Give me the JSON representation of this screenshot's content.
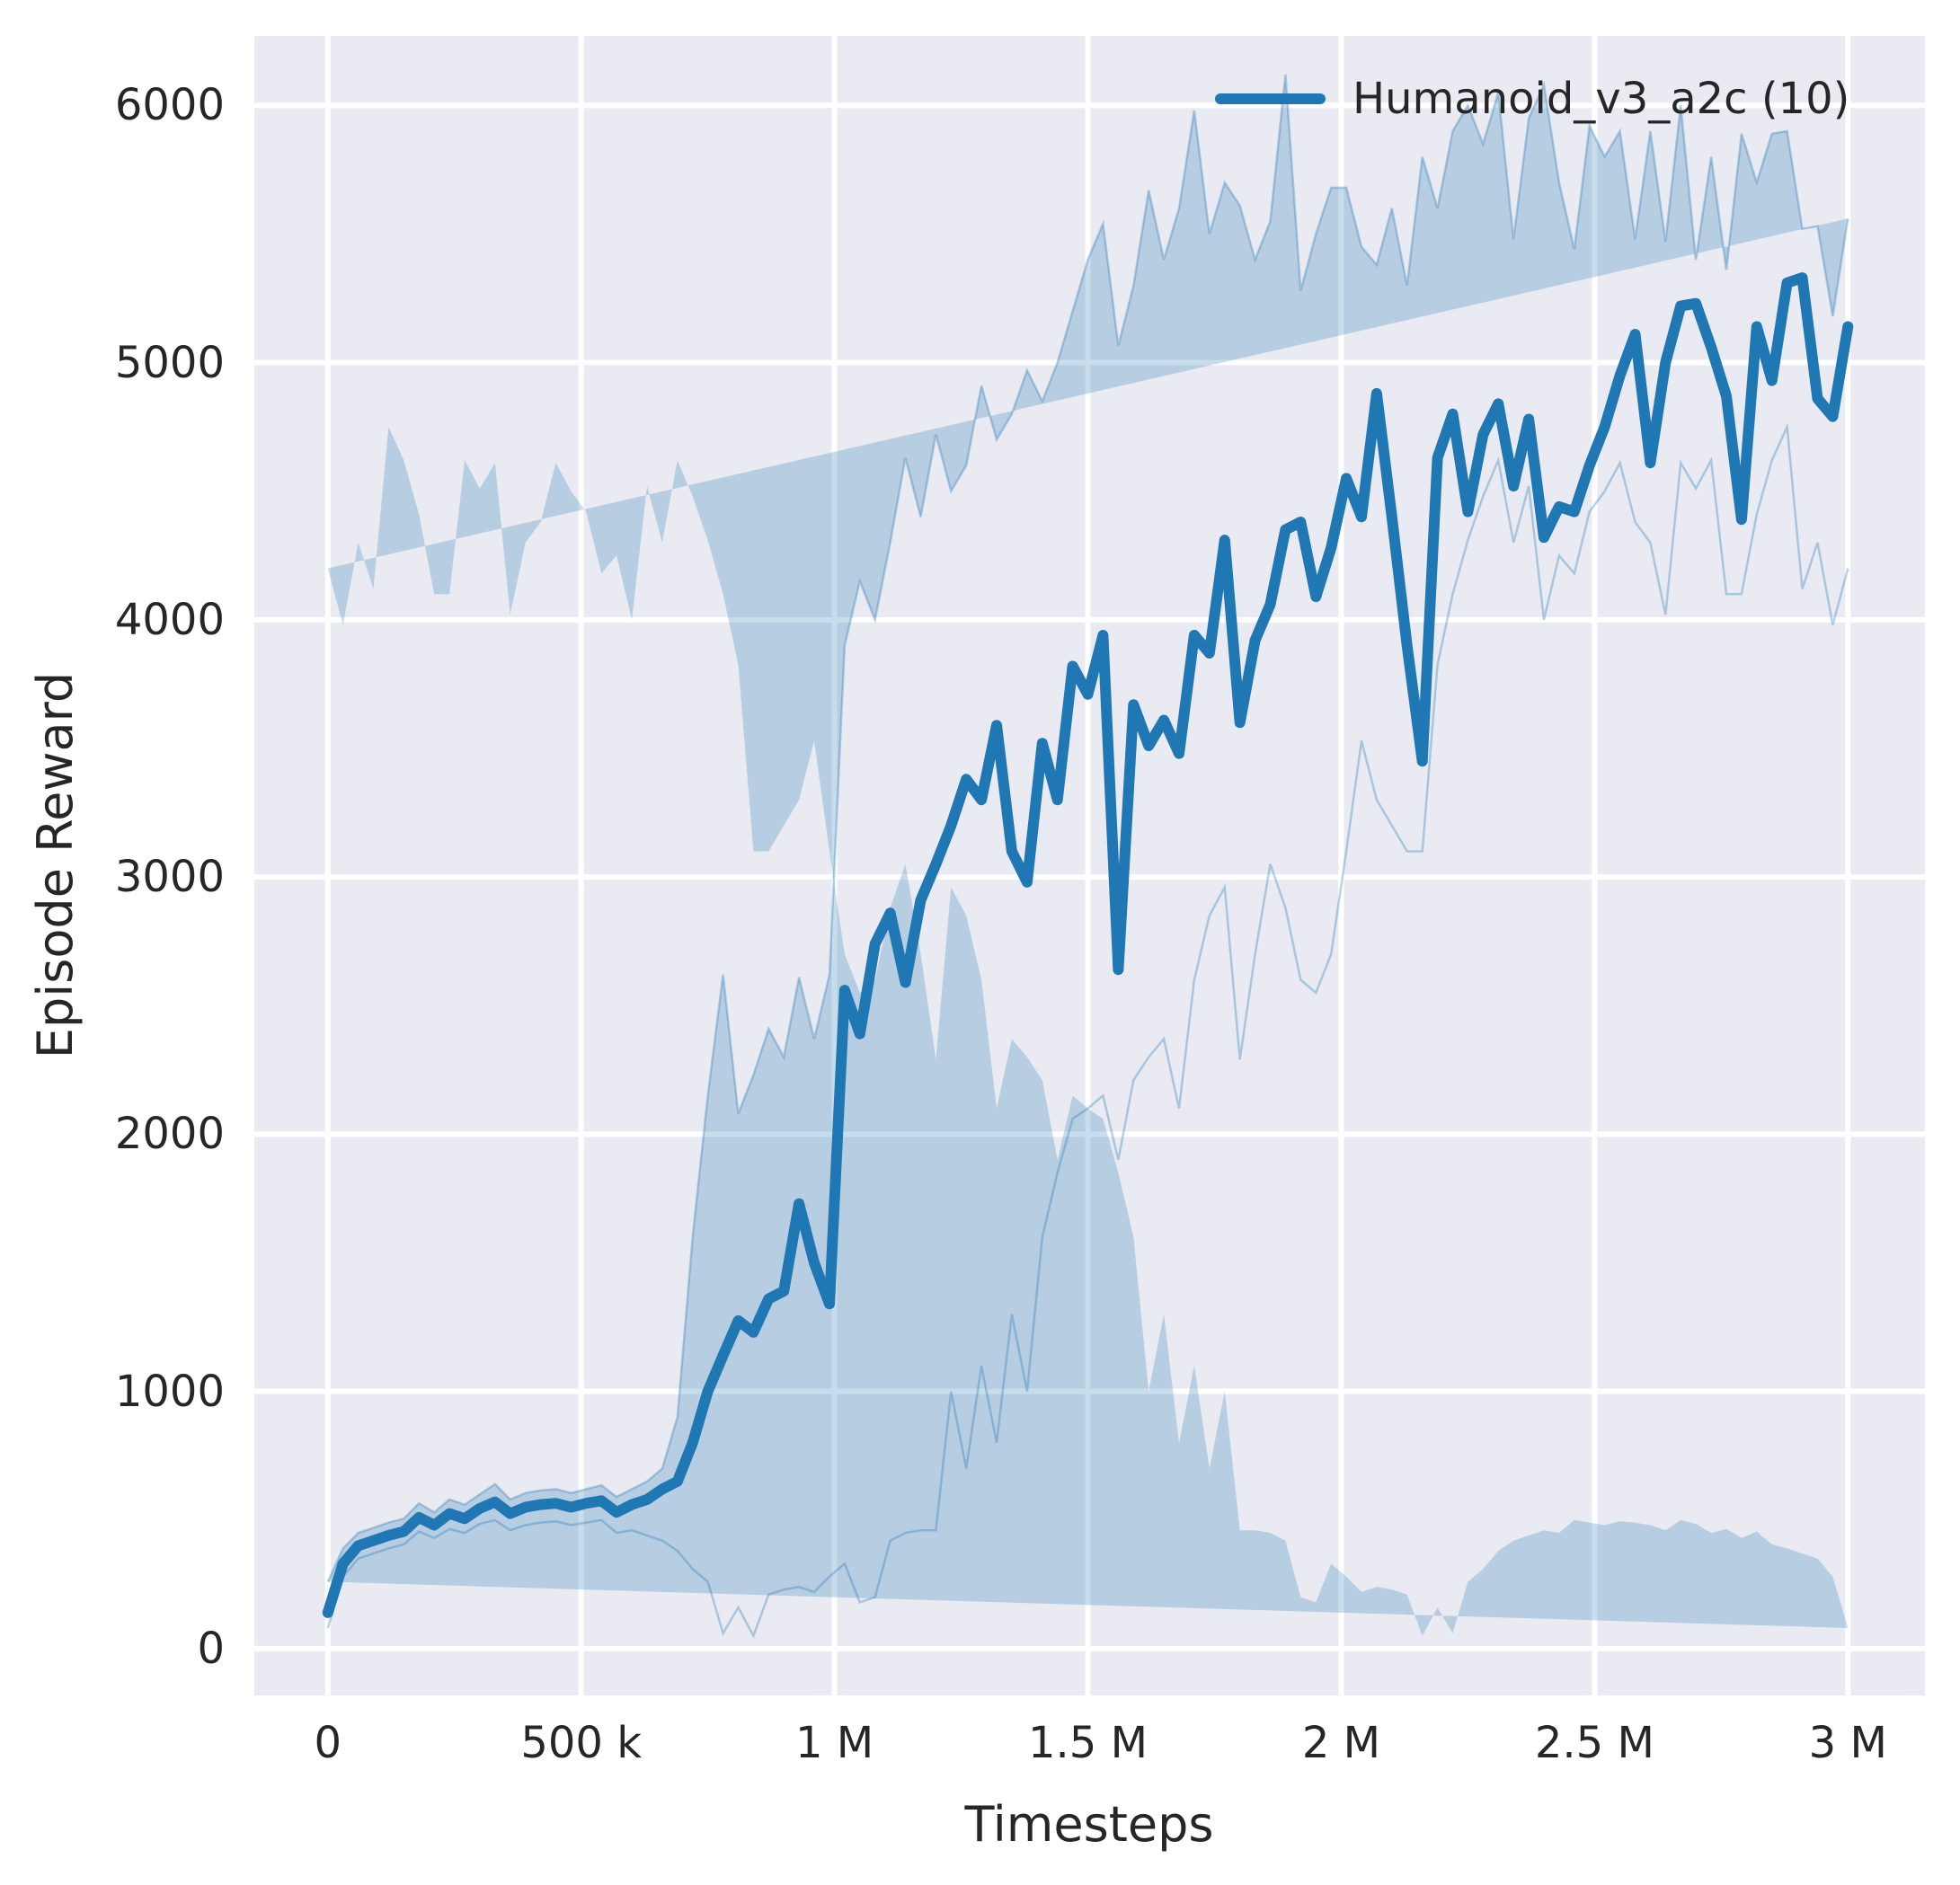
{
  "colors": {
    "figure_background": "#ffffff",
    "axes_background": "#eaeaf2",
    "grid": "#ffffff",
    "line": "#1f77b4",
    "band_fill": "rgba(31,119,180,0.25)",
    "band_edge": "rgba(31,119,180,0.32)",
    "text": "#262626"
  },
  "chart_data": {
    "type": "line",
    "title": "",
    "xlabel": "Timesteps",
    "ylabel": "Episode Reward",
    "grid": true,
    "legend": {
      "position": "upper right",
      "entries": [
        {
          "label": "Humanoid_v3_a2c (10)",
          "color": "#1f77b4"
        }
      ]
    },
    "xlim": [
      -145000,
      3152000
    ],
    "ylim": [
      -182,
      6270
    ],
    "x_ticks": [
      {
        "value": 0,
        "label": "0"
      },
      {
        "value": 500000,
        "label": "500 k"
      },
      {
        "value": 1000000,
        "label": "1 M"
      },
      {
        "value": 1500000,
        "label": "1.5 M"
      },
      {
        "value": 2000000,
        "label": "2 M"
      },
      {
        "value": 2500000,
        "label": "2.5 M"
      },
      {
        "value": 3000000,
        "label": "3 M"
      }
    ],
    "y_ticks": [
      {
        "value": 0,
        "label": "0"
      },
      {
        "value": 1000,
        "label": "1000"
      },
      {
        "value": 2000,
        "label": "2000"
      },
      {
        "value": 3000,
        "label": "3000"
      },
      {
        "value": 4000,
        "label": "4000"
      },
      {
        "value": 5000,
        "label": "5000"
      },
      {
        "value": 6000,
        "label": "6000"
      }
    ],
    "series": [
      {
        "name": "Humanoid_v3_a2c (10)",
        "color": "#1f77b4",
        "x": {
          "start": 0,
          "step": 30000,
          "count": 101,
          "unit": "timesteps"
        },
        "mean": [
          140,
          330,
          400,
          420,
          440,
          455,
          510,
          480,
          525,
          505,
          545,
          570,
          525,
          550,
          560,
          565,
          550,
          565,
          575,
          530,
          560,
          580,
          620,
          650,
          800,
          1000,
          1140,
          1275,
          1230,
          1360,
          1390,
          1730,
          1500,
          1340,
          2560,
          2390,
          2740,
          2860,
          2590,
          2910,
          3050,
          3200,
          3380,
          3300,
          3590,
          3100,
          2980,
          3520,
          3300,
          3820,
          3710,
          3940,
          2640,
          3670,
          3510,
          3610,
          3480,
          3940,
          3870,
          4310,
          3600,
          3920,
          4060,
          4350,
          4380,
          4090,
          4280,
          4550,
          4400,
          4880,
          4400,
          3900,
          3450,
          4630,
          4800,
          4420,
          4720,
          4840,
          4520,
          4780,
          4320,
          4440,
          4420,
          4600,
          4750,
          4950,
          5110,
          4610,
          5000,
          5220,
          5230,
          5060,
          4870,
          4390,
          5140,
          4930,
          5310,
          5330,
          4860,
          4790,
          5140
        ],
        "band_upper": [
          260,
          390,
          450,
          470,
          490,
          505,
          565,
          530,
          580,
          560,
          600,
          640,
          580,
          605,
          615,
          620,
          605,
          620,
          635,
          590,
          620,
          650,
          700,
          900,
          1600,
          2150,
          2620,
          2080,
          2230,
          2410,
          2300,
          2610,
          2370,
          2620,
          3900,
          4150,
          4000,
          4300,
          4630,
          4400,
          4720,
          4500,
          4600,
          4910,
          4700,
          4800,
          4970,
          4850,
          5000,
          5200,
          5400,
          5540,
          5065,
          5300,
          5670,
          5400,
          5600,
          5980,
          5500,
          5700,
          5610,
          5400,
          5550,
          6120,
          5280,
          5500,
          5680,
          5680,
          5450,
          5380,
          5600,
          5300,
          5800,
          5600,
          5900,
          6000,
          5850,
          6050,
          5480,
          5950,
          6080,
          5700,
          5440,
          5920,
          5800,
          5900,
          5480,
          5900,
          5470,
          6000,
          5400,
          5800,
          5360,
          5890,
          5700,
          5890,
          5900,
          5520,
          5530,
          5180,
          5560
        ],
        "band_lower": [
          80,
          280,
          350,
          370,
          390,
          405,
          455,
          430,
          465,
          450,
          485,
          500,
          460,
          480,
          490,
          495,
          480,
          490,
          500,
          450,
          460,
          440,
          420,
          380,
          310,
          260,
          60,
          160,
          50,
          210,
          230,
          240,
          220,
          280,
          330,
          180,
          200,
          420,
          450,
          460,
          460,
          1000,
          700,
          1100,
          800,
          1300,
          1000,
          1600,
          1850,
          2060,
          2100,
          2150,
          1900,
          2210,
          2300,
          2370,
          2100,
          2600,
          2850,
          2960,
          2290,
          2700,
          3050,
          2880,
          2600,
          2550,
          2700,
          3100,
          3530,
          3300,
          3200,
          3100,
          3100,
          3825,
          4100,
          4310,
          4480,
          4620,
          4300,
          4520,
          4000,
          4250,
          4180,
          4420,
          4500,
          4610,
          4380,
          4300,
          4020,
          4610,
          4510,
          4620,
          4100,
          4100,
          4410,
          4620,
          4750,
          4120,
          4300,
          3980,
          4200
        ]
      }
    ]
  }
}
